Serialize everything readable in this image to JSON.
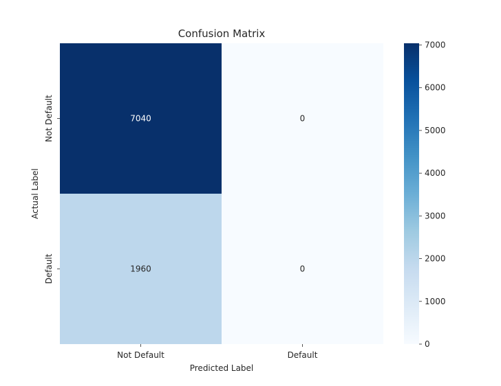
{
  "chart_data": {
    "type": "heatmap",
    "title": "Confusion Matrix",
    "xlabel": "Predicted Label",
    "ylabel": "Actual Label",
    "x_categories": [
      "Not Default",
      "Default"
    ],
    "y_categories": [
      "Not Default",
      "Default"
    ],
    "values": [
      [
        7040,
        0
      ],
      [
        1960,
        0
      ]
    ],
    "colormap": "Blues",
    "colorbar": {
      "min": 0,
      "max": 7040,
      "ticks": [
        0,
        1000,
        2000,
        3000,
        4000,
        5000,
        6000,
        7000
      ],
      "colors": [
        "#f7fbff",
        "#deebf7",
        "#c6dbef",
        "#9ecae1",
        "#6baed6",
        "#4292c6",
        "#2171b5",
        "#08519c",
        "#08306b"
      ]
    },
    "grid": false
  }
}
